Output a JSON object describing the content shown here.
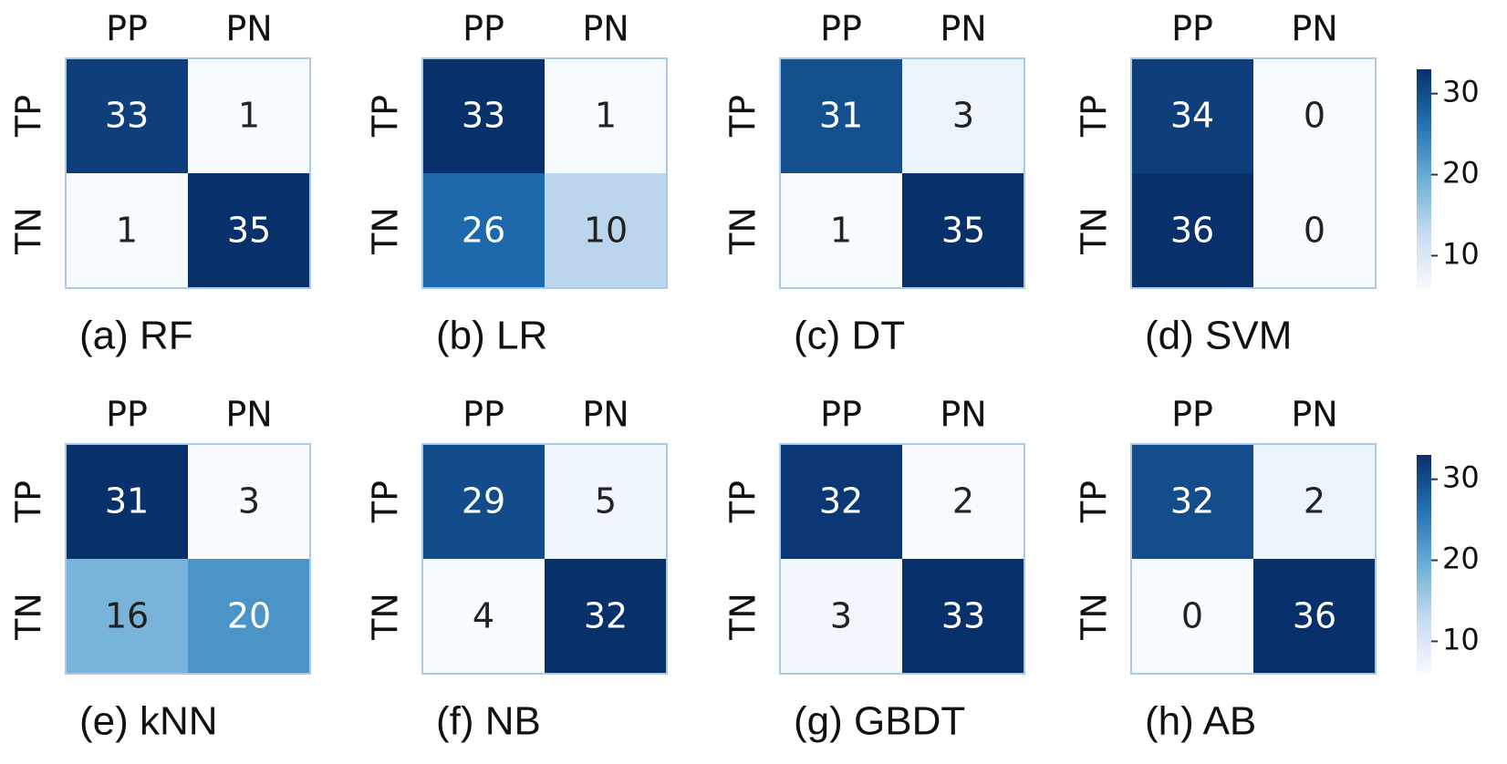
{
  "chart_data": [
    {
      "type": "heatmap",
      "title": "(a) RF",
      "x_categories": [
        "PP",
        "PN"
      ],
      "y_categories": [
        "TP",
        "TN"
      ],
      "values": [
        [
          33,
          1
        ],
        [
          1,
          35
        ]
      ],
      "colormap": "Blues"
    },
    {
      "type": "heatmap",
      "title": "(b) LR",
      "x_categories": [
        "PP",
        "PN"
      ],
      "y_categories": [
        "TP",
        "TN"
      ],
      "values": [
        [
          33,
          1
        ],
        [
          26,
          10
        ]
      ],
      "colormap": "Blues"
    },
    {
      "type": "heatmap",
      "title": "(c) DT",
      "x_categories": [
        "PP",
        "PN"
      ],
      "y_categories": [
        "TP",
        "TN"
      ],
      "values": [
        [
          31,
          3
        ],
        [
          1,
          35
        ]
      ],
      "colormap": "Blues"
    },
    {
      "type": "heatmap",
      "title": "(d) SVM",
      "x_categories": [
        "PP",
        "PN"
      ],
      "y_categories": [
        "TP",
        "TN"
      ],
      "values": [
        [
          34,
          0
        ],
        [
          36,
          0
        ]
      ],
      "colormap": "Blues",
      "colorbar": true,
      "clim": [
        6,
        33
      ],
      "cticks": [
        10,
        20,
        30
      ]
    },
    {
      "type": "heatmap",
      "title": "(e) kNN",
      "x_categories": [
        "PP",
        "PN"
      ],
      "y_categories": [
        "TP",
        "TN"
      ],
      "values": [
        [
          31,
          3
        ],
        [
          16,
          20
        ]
      ],
      "colormap": "Blues"
    },
    {
      "type": "heatmap",
      "title": "(f) NB",
      "x_categories": [
        "PP",
        "PN"
      ],
      "y_categories": [
        "TP",
        "TN"
      ],
      "values": [
        [
          29,
          5
        ],
        [
          4,
          32
        ]
      ],
      "colormap": "Blues"
    },
    {
      "type": "heatmap",
      "title": "(g) GBDT",
      "x_categories": [
        "PP",
        "PN"
      ],
      "y_categories": [
        "TP",
        "TN"
      ],
      "values": [
        [
          32,
          2
        ],
        [
          3,
          33
        ]
      ],
      "colormap": "Blues"
    },
    {
      "type": "heatmap",
      "title": "(h) AB",
      "x_categories": [
        "PP",
        "PN"
      ],
      "y_categories": [
        "TP",
        "TN"
      ],
      "values": [
        [
          32,
          2
        ],
        [
          0,
          36
        ]
      ],
      "colormap": "Blues",
      "colorbar": true,
      "clim": [
        6,
        33
      ],
      "cticks": [
        10,
        20,
        30
      ]
    }
  ]
}
